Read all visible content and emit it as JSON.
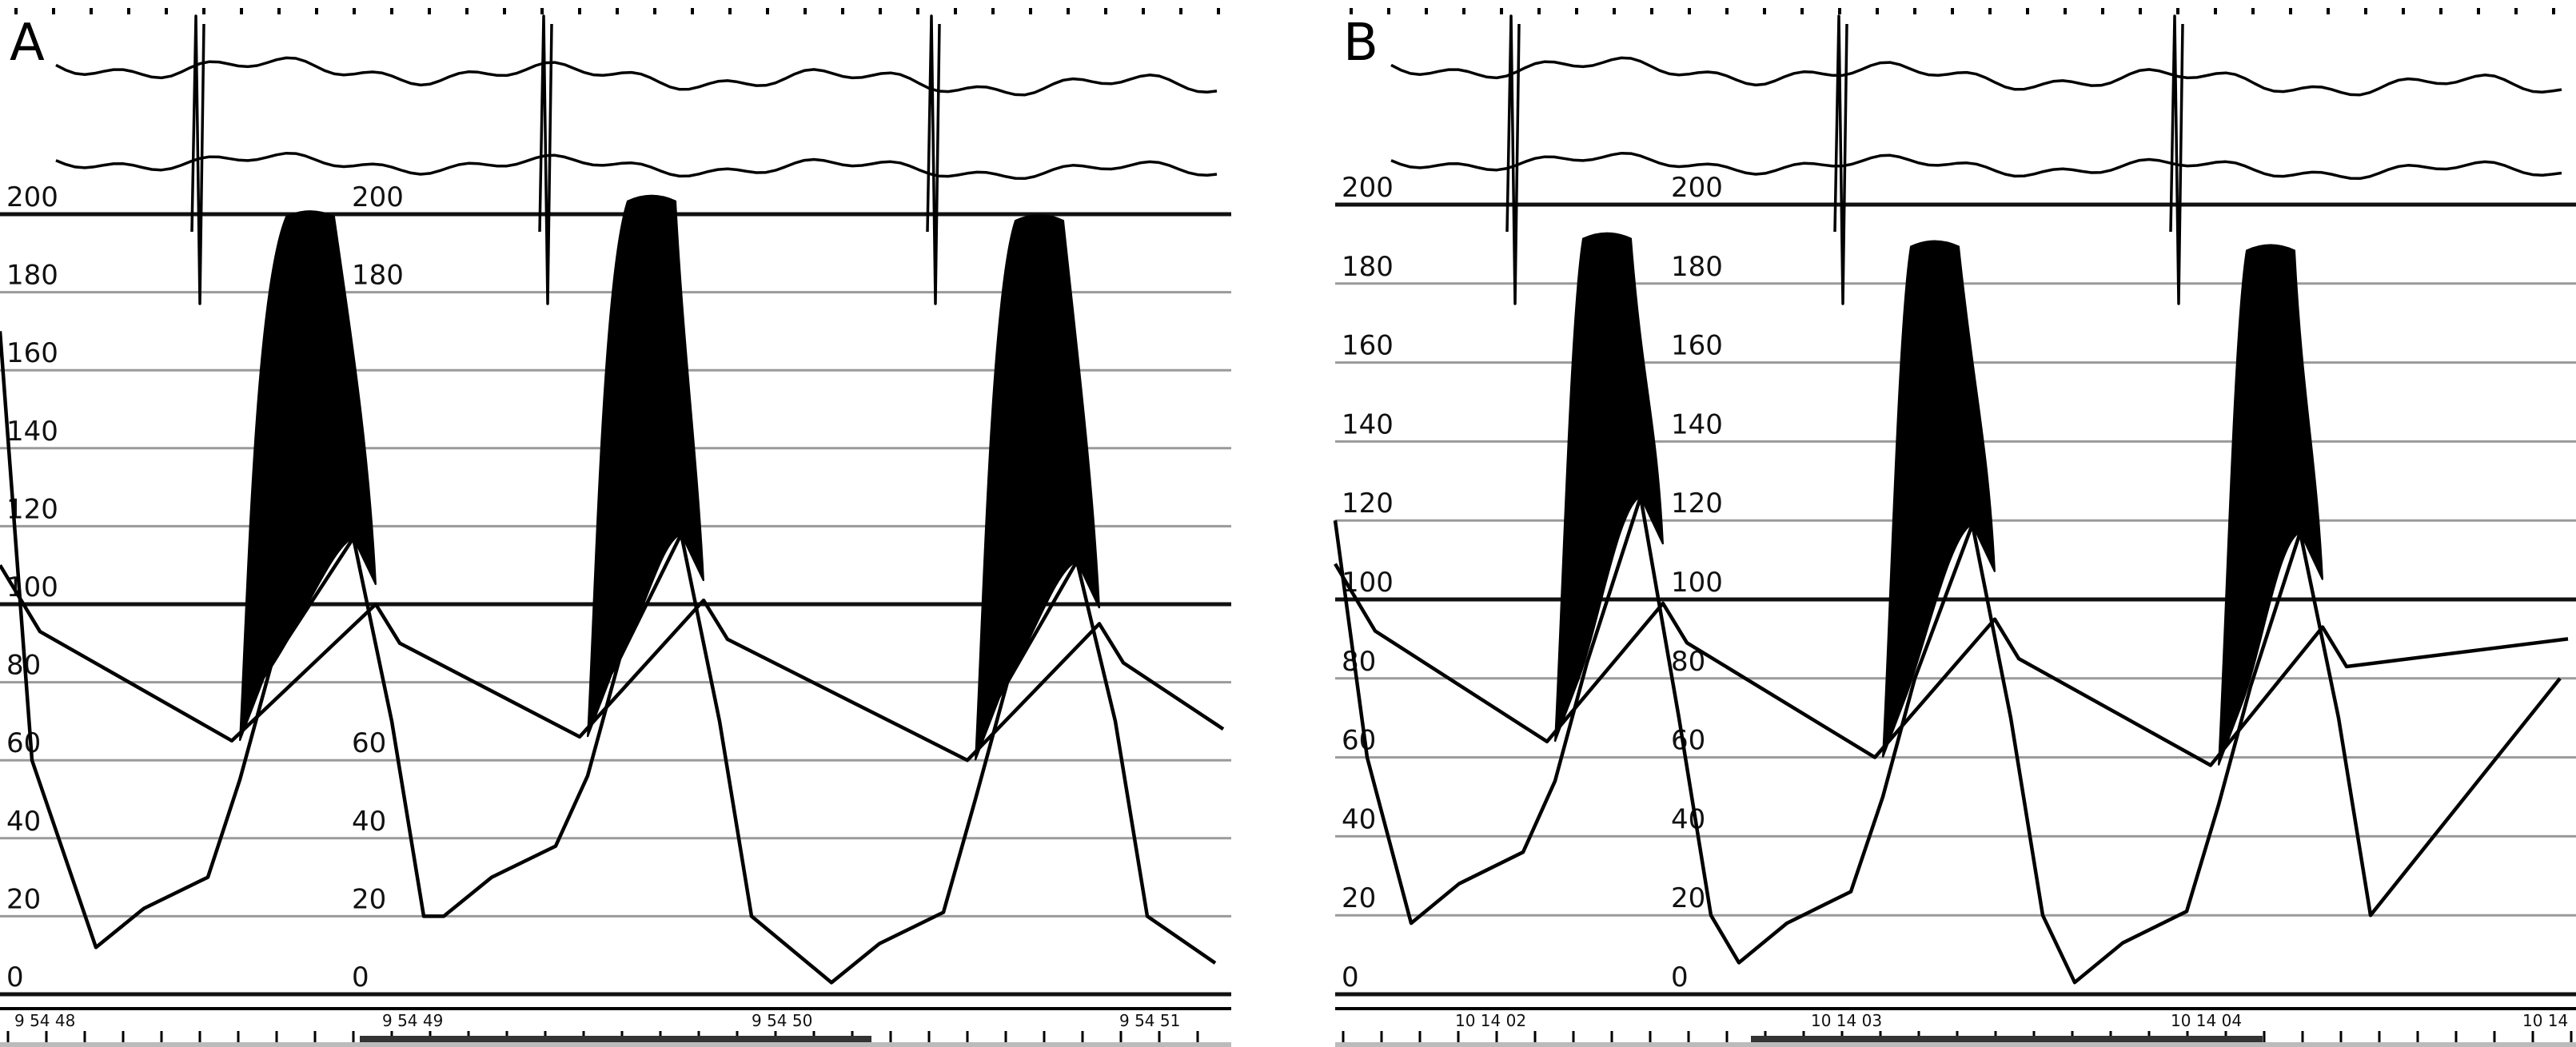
{
  "chart_data": [
    {
      "type": "line",
      "panel_label": "A",
      "y_ticks": [
        "200",
        "180",
        "160",
        "140",
        "120",
        "100",
        "80",
        "60",
        "40",
        "20",
        "0"
      ],
      "y_ticks_repeat": [
        "200",
        "180",
        "60",
        "40",
        "20",
        "0"
      ],
      "x_ticks": [
        "9 54 48",
        "9 54 49",
        "9 54 50",
        "9 54 51"
      ],
      "ylim": [
        0,
        200
      ],
      "beats": [
        {
          "systolic_peak": 201,
          "diastolic_pressure": 65,
          "arterial_peak": 117,
          "arterial_min": 12
        },
        {
          "systolic_peak": 205,
          "diastolic_pressure": 66,
          "arterial_peak": 118,
          "arterial_min": 20
        },
        {
          "systolic_peak": 200,
          "diastolic_pressure": 60,
          "arterial_peak": 111,
          "arterial_min": 3
        }
      ]
    },
    {
      "type": "line",
      "panel_label": "B",
      "y_ticks": [
        "200",
        "180",
        "160",
        "140",
        "120",
        "100",
        "80",
        "60",
        "40",
        "20",
        "0"
      ],
      "y_ticks_repeat": [
        "200",
        "180",
        "160",
        "140",
        "120",
        "100",
        "80",
        "60",
        "40",
        "20",
        "0"
      ],
      "x_ticks": [
        "10 14 02",
        "10 14 03",
        "10 14 04",
        "10 14"
      ],
      "ylim": [
        0,
        200
      ],
      "beats": [
        {
          "systolic_peak": 193,
          "diastolic_pressure": 64,
          "arterial_peak": 126,
          "arterial_min": 18
        },
        {
          "systolic_peak": 191,
          "diastolic_pressure": 60,
          "arterial_peak": 119,
          "arterial_min": 8
        },
        {
          "systolic_peak": 190,
          "diastolic_pressure": 58,
          "arterial_peak": 117,
          "arterial_min": 3
        }
      ]
    }
  ]
}
